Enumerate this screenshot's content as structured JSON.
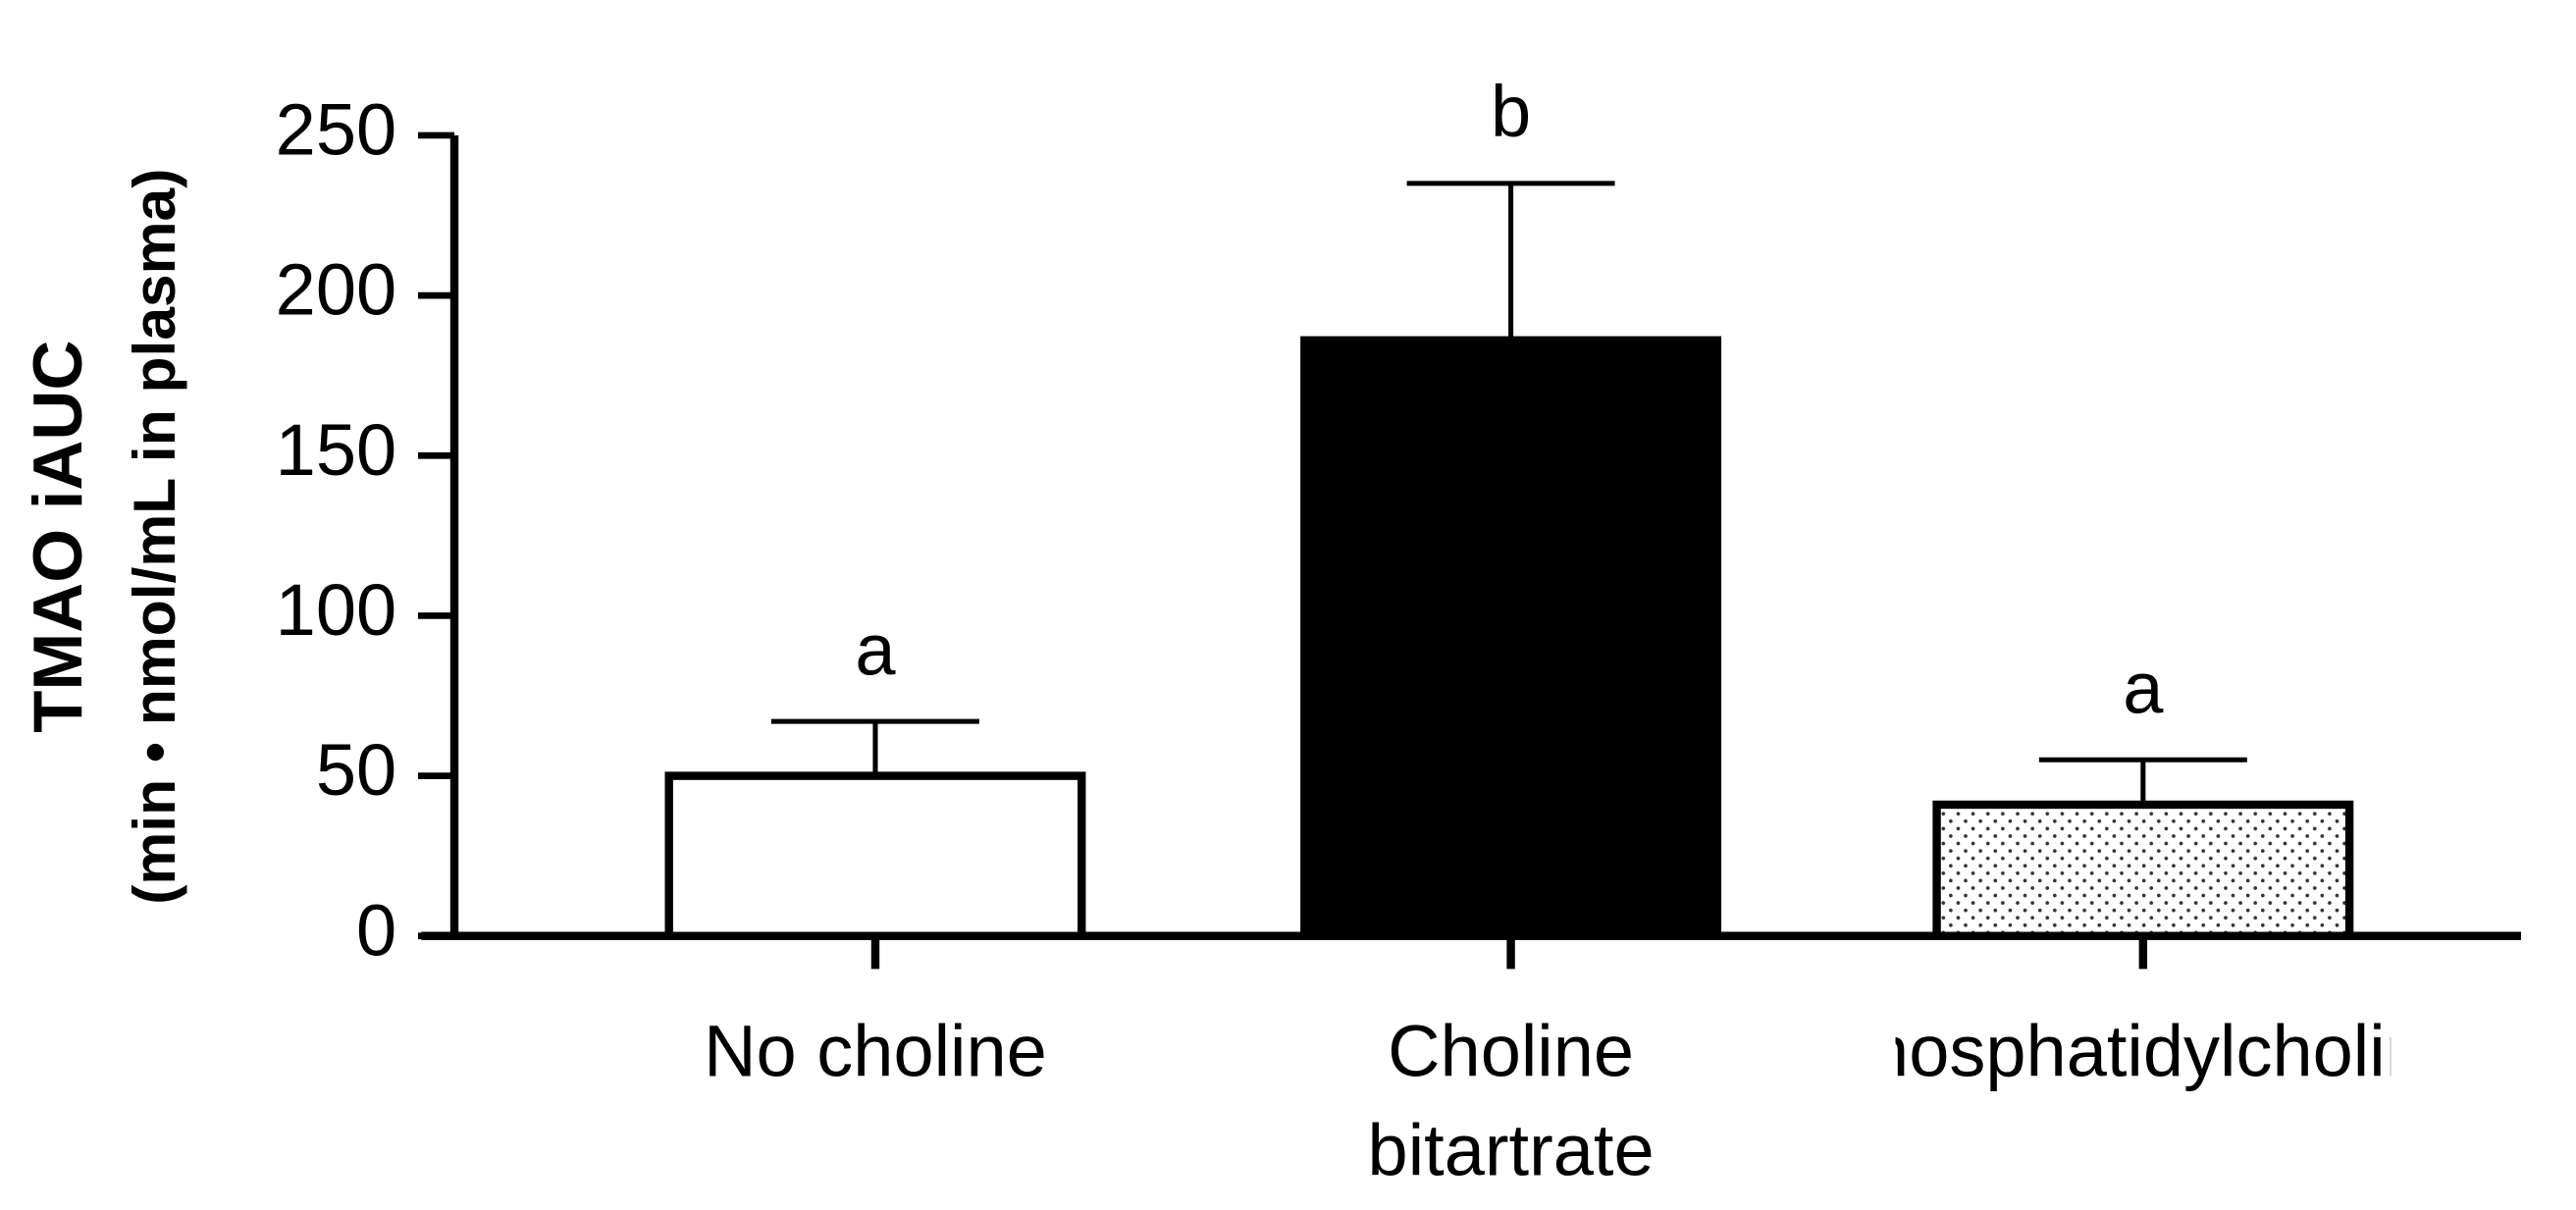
{
  "chart_data": {
    "type": "bar",
    "ylabel": [
      "TMAO iAUC",
      "(min • nmol/mL in plasma)"
    ],
    "categories": [
      "No choline",
      "Choline bitartrate",
      "Phosphatidylcholine"
    ],
    "values": [
      50,
      186,
      41
    ],
    "errors": [
      17,
      49,
      14
    ],
    "annotations": [
      "a",
      "b",
      "a"
    ],
    "colors": [
      "#ffffff",
      "#000000",
      "dotted"
    ],
    "ylim": [
      0,
      250
    ],
    "yticks": [
      0,
      50,
      100,
      150,
      200,
      250
    ],
    "grid": false
  }
}
